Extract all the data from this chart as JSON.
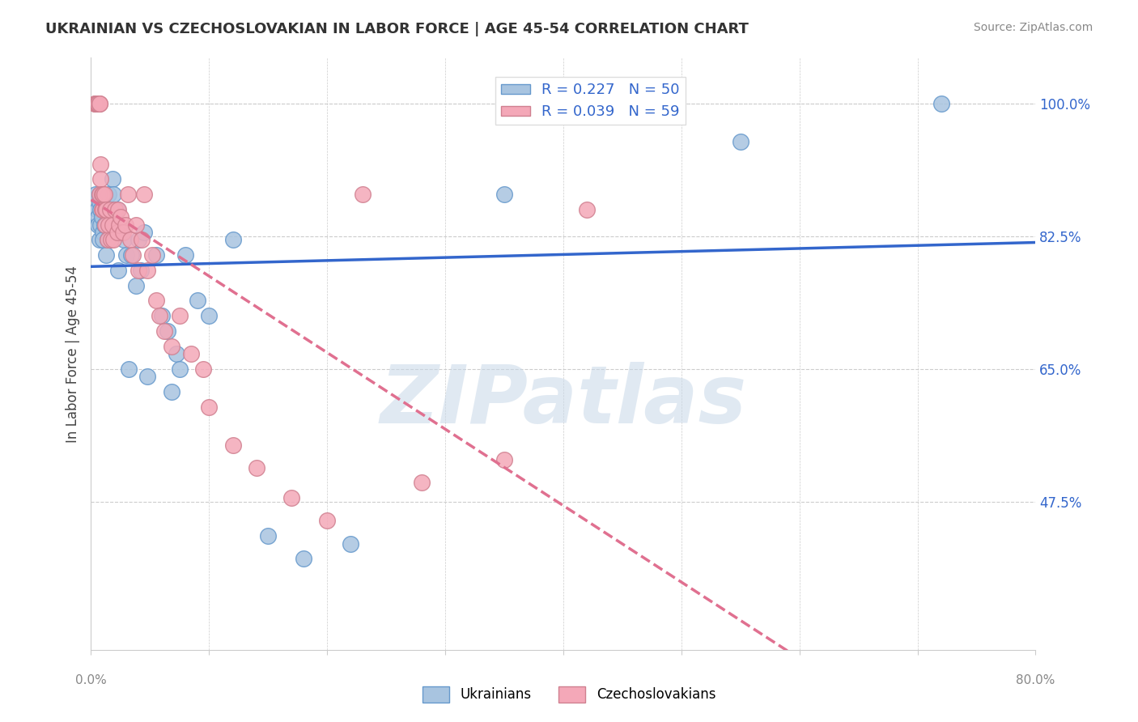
{
  "title": "UKRAINIAN VS CZECHOSLOVAKIAN IN LABOR FORCE | AGE 45-54 CORRELATION CHART",
  "source": "Source: ZipAtlas.com",
  "ylabel": "In Labor Force | Age 45-54",
  "ytick_labels": [
    "100.0%",
    "82.5%",
    "65.0%",
    "47.5%"
  ],
  "ytick_values": [
    1.0,
    0.825,
    0.65,
    0.475
  ],
  "legend_label1": "R = 0.227   N = 50",
  "legend_label2": "R = 0.039   N = 59",
  "scatter_color1": "#a8c4e0",
  "scatter_color2": "#f4a8b8",
  "edge_color1": "#6699cc",
  "edge_color2": "#d08090",
  "line_color1": "#3366cc",
  "line_color2": "#e07090",
  "watermark": "ZIPatlas",
  "watermark_color": "#c8d8e8",
  "background_color": "#ffffff",
  "grid_color": "#cccccc",
  "xlim": [
    0.0,
    0.8
  ],
  "ylim": [
    0.28,
    1.06
  ],
  "ukrainians_x": [
    0.004,
    0.005,
    0.006,
    0.006,
    0.007,
    0.007,
    0.007,
    0.008,
    0.008,
    0.009,
    0.01,
    0.01,
    0.011,
    0.013,
    0.014,
    0.015,
    0.016,
    0.017,
    0.018,
    0.019,
    0.02,
    0.021,
    0.022,
    0.023,
    0.025,
    0.028,
    0.03,
    0.032,
    0.034,
    0.038,
    0.04,
    0.042,
    0.045,
    0.048,
    0.055,
    0.06,
    0.065,
    0.068,
    0.072,
    0.075,
    0.08,
    0.09,
    0.1,
    0.12,
    0.15,
    0.18,
    0.22,
    0.35,
    0.55,
    0.72
  ],
  "ukrainians_y": [
    0.88,
    0.86,
    0.85,
    0.84,
    0.88,
    0.87,
    0.82,
    0.86,
    0.84,
    0.85,
    0.83,
    0.82,
    0.84,
    0.8,
    0.82,
    0.88,
    0.85,
    0.83,
    0.9,
    0.88,
    0.86,
    0.84,
    0.86,
    0.78,
    0.83,
    0.82,
    0.8,
    0.65,
    0.8,
    0.76,
    0.82,
    0.78,
    0.83,
    0.64,
    0.8,
    0.72,
    0.7,
    0.62,
    0.67,
    0.65,
    0.8,
    0.74,
    0.72,
    0.82,
    0.43,
    0.4,
    0.42,
    0.88,
    0.95,
    1.0
  ],
  "czechoslovakians_x": [
    0.003,
    0.004,
    0.004,
    0.005,
    0.005,
    0.006,
    0.006,
    0.006,
    0.007,
    0.007,
    0.007,
    0.008,
    0.008,
    0.009,
    0.009,
    0.01,
    0.01,
    0.011,
    0.012,
    0.012,
    0.013,
    0.014,
    0.015,
    0.016,
    0.017,
    0.018,
    0.019,
    0.02,
    0.022,
    0.023,
    0.024,
    0.025,
    0.027,
    0.029,
    0.031,
    0.033,
    0.035,
    0.038,
    0.04,
    0.043,
    0.045,
    0.048,
    0.052,
    0.055,
    0.058,
    0.062,
    0.068,
    0.075,
    0.085,
    0.095,
    0.1,
    0.12,
    0.14,
    0.17,
    0.2,
    0.23,
    0.28,
    0.35,
    0.42
  ],
  "czechoslovakians_y": [
    1.0,
    1.0,
    1.0,
    1.0,
    1.0,
    1.0,
    1.0,
    1.0,
    1.0,
    1.0,
    0.88,
    0.92,
    0.9,
    0.88,
    0.86,
    0.88,
    0.86,
    0.88,
    0.86,
    0.84,
    0.86,
    0.82,
    0.84,
    0.86,
    0.82,
    0.84,
    0.82,
    0.86,
    0.83,
    0.86,
    0.84,
    0.85,
    0.83,
    0.84,
    0.88,
    0.82,
    0.8,
    0.84,
    0.78,
    0.82,
    0.88,
    0.78,
    0.8,
    0.74,
    0.72,
    0.7,
    0.68,
    0.72,
    0.67,
    0.65,
    0.6,
    0.55,
    0.52,
    0.48,
    0.45,
    0.88,
    0.5,
    0.53,
    0.86
  ]
}
